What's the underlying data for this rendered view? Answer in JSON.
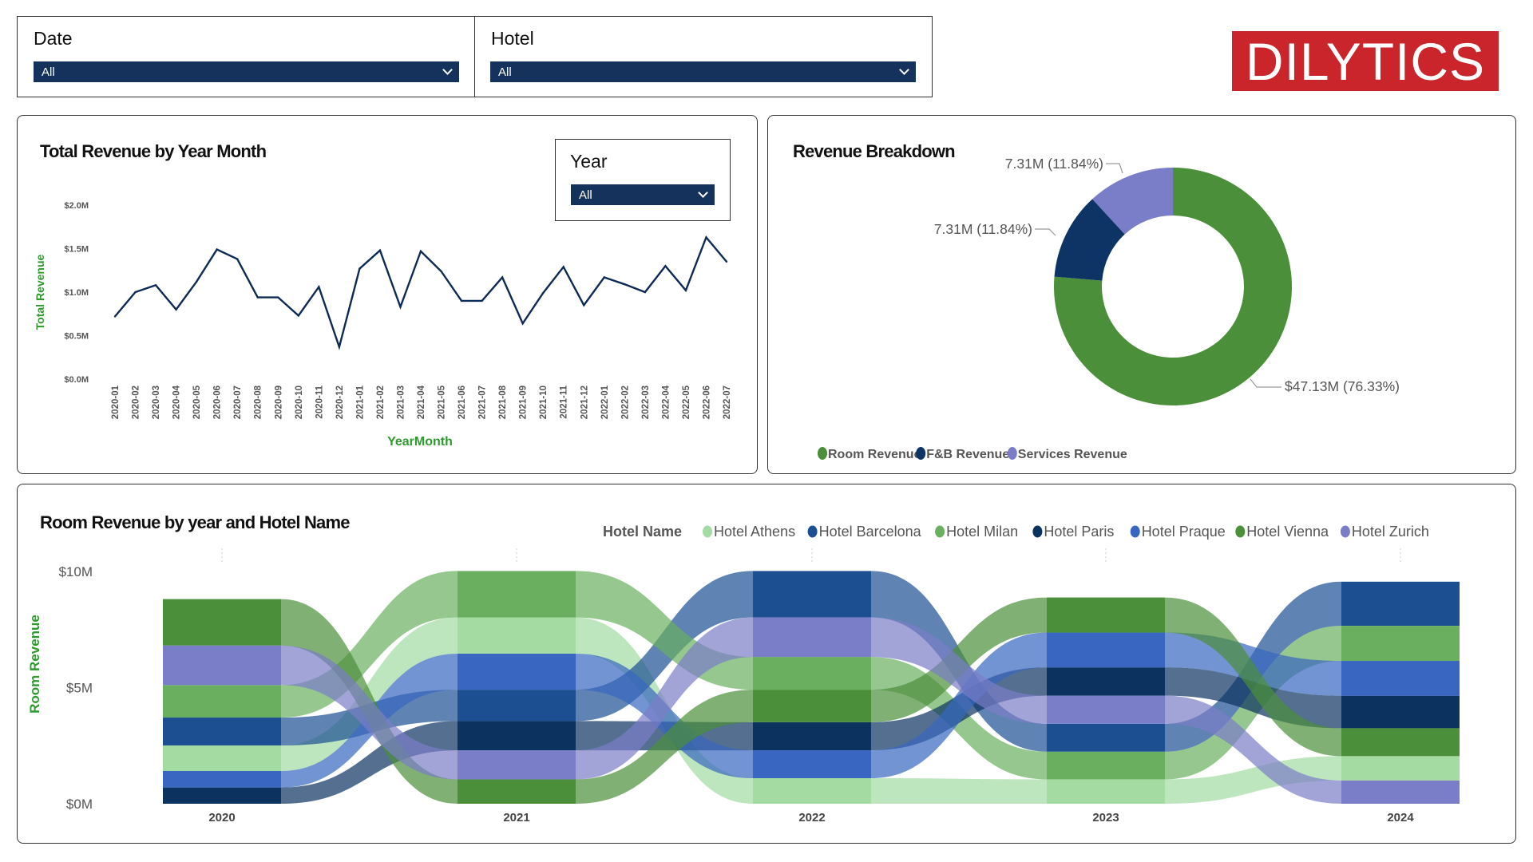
{
  "filters": {
    "date": {
      "label": "Date",
      "value": "All"
    },
    "hotel": {
      "label": "Hotel",
      "value": "All"
    },
    "year": {
      "label": "Year",
      "value": "All"
    }
  },
  "logo": {
    "text": "DILYTICS",
    "color": "#c9252b"
  },
  "line_panel": {
    "title": "Total Revenue by Year Month"
  },
  "donut_panel": {
    "title": "Revenue Breakdown"
  },
  "ribbon_panel": {
    "title": "Room Revenue by year and Hotel Name",
    "legend_title": "Hotel Name"
  },
  "chart_data": [
    {
      "type": "line",
      "title": "Total Revenue by Year Month",
      "xlabel": "YearMonth",
      "ylabel": "Total Revenue",
      "ylim": [
        0,
        2.0
      ],
      "yticks": [
        "$0.0M",
        "$0.5M",
        "$1.0M",
        "$1.5M",
        "$2.0M"
      ],
      "line_color": "#0e2a57",
      "x": [
        "2020-01",
        "2020-02",
        "2020-03",
        "2020-04",
        "2020-05",
        "2020-06",
        "2020-07",
        "2020-08",
        "2020-09",
        "2020-10",
        "2020-11",
        "2020-12",
        "2021-01",
        "2021-02",
        "2021-03",
        "2021-04",
        "2021-05",
        "2021-06",
        "2021-07",
        "2021-08",
        "2021-09",
        "2021-10",
        "2021-11",
        "2021-12",
        "2022-01",
        "2022-02",
        "2022-03",
        "2022-04",
        "2022-05",
        "2022-06",
        "2022-07"
      ],
      "values": [
        0.72,
        1.0,
        1.08,
        0.8,
        1.12,
        1.49,
        1.38,
        0.94,
        0.94,
        0.73,
        1.06,
        0.37,
        1.27,
        1.48,
        0.83,
        1.47,
        1.24,
        0.9,
        0.9,
        1.17,
        0.64,
        0.99,
        1.29,
        0.85,
        1.17,
        1.09,
        1.0,
        1.3,
        1.02,
        1.63,
        1.35
      ]
    },
    {
      "type": "pie",
      "title": "Revenue Breakdown",
      "slices": [
        {
          "name": "Room Revenue",
          "value": 47.13,
          "label": "$47.13M (76.33%)",
          "percent": 76.33,
          "color": "#4b8f3a"
        },
        {
          "name": "F&B Revenue",
          "value": 7.31,
          "label": "7.31M (11.84%)",
          "percent": 11.84,
          "color": "#0e3466"
        },
        {
          "name": "Services Revenue",
          "value": 7.31,
          "label": "7.31M (11.84%)",
          "percent": 11.84,
          "color": "#7a7ec8"
        }
      ],
      "legend": "bottom-left"
    },
    {
      "type": "ribbon",
      "title": "Room Revenue by year and Hotel Name",
      "ylabel": "Room Revenue",
      "ylim": [
        0,
        10
      ],
      "yticks": [
        "$0M",
        "$5M",
        "$10M"
      ],
      "categories": [
        "2020",
        "2021",
        "2022",
        "2023",
        "2024"
      ],
      "legend_title": "Hotel Name",
      "legend": "top-right",
      "series": [
        {
          "name": "Hotel Athens",
          "color": "#a3dba3",
          "values": [
            1.1,
            1.56,
            1.1,
            1.05,
            1.05
          ]
        },
        {
          "name": "Hotel Barcelona",
          "color": "#1b4f91",
          "values": [
            1.2,
            1.35,
            2.0,
            1.2,
            1.9
          ]
        },
        {
          "name": "Hotel Milan",
          "color": "#6aaf5f",
          "values": [
            1.4,
            2.0,
            1.41,
            1.19,
            1.51
          ]
        },
        {
          "name": "Hotel Paris",
          "color": "#0c3260",
          "values": [
            0.7,
            1.26,
            1.21,
            1.22,
            1.4
          ]
        },
        {
          "name": "Hotel Praque",
          "color": "#3866c0",
          "values": [
            0.71,
            1.55,
            1.2,
            1.5,
            1.5
          ]
        },
        {
          "name": "Hotel Vienna",
          "color": "#4b8f3a",
          "values": [
            2.0,
            1.05,
            1.4,
            1.51,
            1.2
          ]
        },
        {
          "name": "Hotel Zurich",
          "color": "#7a7ec8",
          "values": [
            1.7,
            1.25,
            1.7,
            1.21,
            1.0
          ]
        }
      ]
    }
  ]
}
